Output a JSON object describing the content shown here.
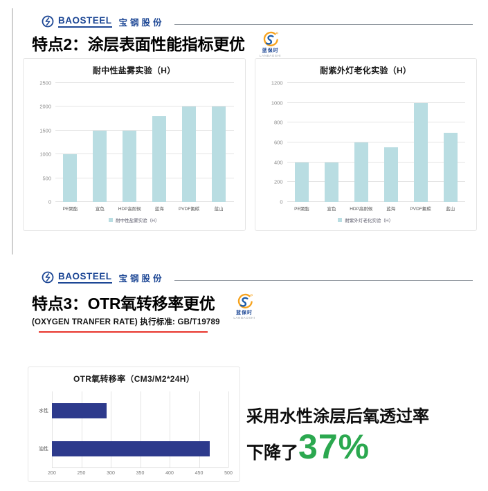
{
  "brand": {
    "name": "BAOSTEEL",
    "name_cn": "宝钢股份",
    "sub_brand_cn": "蓝保时",
    "sub_brand_en": "LANBAOSHI"
  },
  "slide_feature2": {
    "title": "特点2：涂层表面性能指标更优"
  },
  "slide_feature3": {
    "title": "特点3：OTR氧转移率更优",
    "subtitle": "(OXYGEN TRANFER RATE) 执行标准: GB/T19789",
    "callout": {
      "line1": "采用水性涂层后氧透过率",
      "line2_prefix": "下降了",
      "percent": "37%"
    }
  },
  "colors": {
    "brand_navy": "#1d4795",
    "bar_teal": "#b9dde2",
    "bar_navy": "#2d3a8c",
    "accent_red": "#e8332a",
    "percent_green": "#2ba84f",
    "logo_orange": "#f6a21c",
    "logo_blue": "#1b5cab"
  },
  "icons": {
    "baosteel_mark": "circle-monogram",
    "lanbaoshi_mark": "swirl-s"
  },
  "chart_data": [
    {
      "type": "bar",
      "title": "耐中性盐雾实验（H）",
      "categories": [
        "PE聚酯",
        "宣色",
        "HDP高耐候",
        "蓝海",
        "PVDF氟碳",
        "蓝山"
      ],
      "values": [
        1000,
        1500,
        1500,
        1800,
        2000,
        2000
      ],
      "ylim": [
        0,
        2500
      ],
      "yticks": [
        0,
        500,
        1000,
        1500,
        2000,
        2500
      ],
      "legend": "耐中性盐雾实验（H）",
      "bar_color": "#b9dde2",
      "grid": true,
      "legend_position": "bottom"
    },
    {
      "type": "bar",
      "title": "耐紫外灯老化实验（H）",
      "categories": [
        "PE聚酯",
        "宣色",
        "HDP高耐候",
        "蓝海",
        "PVDF氟碳",
        "蓝山"
      ],
      "values": [
        400,
        400,
        600,
        550,
        1000,
        700
      ],
      "ylim": [
        0,
        1200
      ],
      "yticks": [
        0,
        200,
        400,
        600,
        800,
        1000,
        1200
      ],
      "legend": "耐紫外灯老化实验（H）",
      "bar_color": "#b9dde2",
      "grid": true,
      "legend_position": "bottom"
    },
    {
      "type": "bar-horizontal",
      "title": "OTR氧转移率（CM3/M2*24H）",
      "categories": [
        "水性",
        "油性"
      ],
      "values": [
        293,
        468
      ],
      "xlim": [
        200,
        500
      ],
      "xticks": [
        200,
        250,
        300,
        350,
        400,
        450,
        500
      ],
      "bar_color": "#2d3a8c",
      "grid": true,
      "legend_position": "none"
    }
  ]
}
